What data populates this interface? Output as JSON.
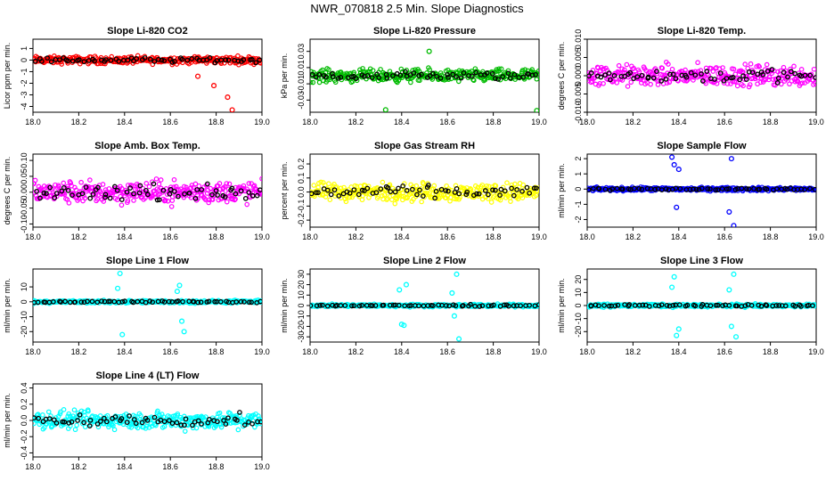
{
  "title": "NWR_070818  2.5 Min. Slope Diagnostics",
  "shared_x_ticks": [
    "18.0",
    "18.2",
    "18.4",
    "18.6",
    "18.8",
    "19.0"
  ],
  "chart_data": [
    {
      "type": "scatter",
      "title": "Slope Li-820 CO2",
      "ylabel": "Licor ppm per min.",
      "color": "#ff0000",
      "xlim": [
        18.0,
        19.0
      ],
      "ylim": [
        -4.5,
        1.8
      ],
      "yticks": [
        -4,
        -3,
        -2,
        -1,
        0,
        1
      ],
      "ytick_labels": [
        "-4",
        "-3",
        "-2",
        "-1",
        "0",
        "1"
      ],
      "noise": 0.5,
      "outliers": [
        [
          18.79,
          -2.2
        ],
        [
          18.85,
          -3.2
        ],
        [
          18.87,
          -4.3
        ],
        [
          18.72,
          -1.4
        ]
      ]
    },
    {
      "type": "scatter",
      "title": "Slope Li-820 Pressure",
      "ylabel": "kPa per min.",
      "color": "#00bb00",
      "xlim": [
        18.0,
        19.0
      ],
      "ylim": [
        -0.045,
        0.045
      ],
      "yticks": [
        -0.03,
        -0.01,
        0.01,
        0.03
      ],
      "ytick_labels": [
        "-0.03",
        "-0.01",
        "0.01",
        "0.03"
      ],
      "noise": 0.012,
      "outliers": [
        [
          18.33,
          -0.042
        ],
        [
          18.99,
          -0.043
        ],
        [
          18.52,
          0.03
        ]
      ]
    },
    {
      "type": "scatter",
      "title": "Slope Li-820 Temp.",
      "ylabel": "degrees C per min.",
      "color": "#ff00ff",
      "xlim": [
        18.0,
        19.0
      ],
      "ylim": [
        -0.01,
        0.01
      ],
      "yticks": [
        -0.01,
        -0.005,
        0.0,
        0.005,
        0.01
      ],
      "ytick_labels": [
        "-0.010",
        "-0.005",
        "0.000",
        "0.005",
        "0.010"
      ],
      "noise": 0.0045,
      "outliers": []
    },
    {
      "type": "scatter",
      "title": "Slope Amb. Box Temp.",
      "ylabel": "degrees C per min.",
      "color": "#ff00ff",
      "xlim": [
        18.0,
        19.0
      ],
      "ylim": [
        -0.11,
        0.12
      ],
      "yticks": [
        -0.1,
        -0.05,
        0.0,
        0.05,
        0.1
      ],
      "ytick_labels": [
        "-0.10",
        "-0.05",
        "0.00",
        "0.05",
        "0.10"
      ],
      "noise": 0.055,
      "outliers": []
    },
    {
      "type": "scatter",
      "title": "Slope Gas Stream RH",
      "ylabel": "percent per min.",
      "color": "#ffff00",
      "xlim": [
        18.0,
        19.0
      ],
      "ylim": [
        -0.25,
        0.27
      ],
      "yticks": [
        -0.2,
        -0.1,
        0.0,
        0.1,
        0.2
      ],
      "ytick_labels": [
        "-0.2",
        "-0.1",
        "0.0",
        "0.1",
        "0.2"
      ],
      "noise": 0.1,
      "outliers": []
    },
    {
      "type": "scatter",
      "title": "Slope Sample Flow",
      "ylabel": "ml/min per min.",
      "color": "#0000ff",
      "xlim": [
        18.0,
        19.0
      ],
      "ylim": [
        -2.5,
        2.3
      ],
      "yticks": [
        -2,
        -1,
        0,
        1,
        2
      ],
      "ytick_labels": [
        "-2",
        "-1",
        "0",
        "1",
        "2"
      ],
      "noise": 0.18,
      "outliers": [
        [
          18.37,
          2.1
        ],
        [
          18.38,
          1.6
        ],
        [
          18.39,
          -1.2
        ],
        [
          18.63,
          2.0
        ],
        [
          18.64,
          -2.4
        ],
        [
          18.62,
          -1.5
        ],
        [
          18.4,
          1.3
        ]
      ]
    },
    {
      "type": "scatter",
      "title": "Slope Line 1 Flow",
      "ylabel": "ml/min per min.",
      "color": "#00ffff",
      "xlim": [
        18.0,
        19.0
      ],
      "ylim": [
        -27,
        22
      ],
      "yticks": [
        -20,
        -10,
        0,
        10
      ],
      "ytick_labels": [
        "-20",
        "-10",
        "0",
        "10"
      ],
      "noise": 1.5,
      "outliers": [
        [
          18.38,
          19
        ],
        [
          18.39,
          -22
        ],
        [
          18.37,
          9
        ],
        [
          18.64,
          11
        ],
        [
          18.66,
          -20
        ],
        [
          18.63,
          7
        ],
        [
          18.65,
          -13
        ]
      ]
    },
    {
      "type": "scatter",
      "title": "Slope Line 2 Flow",
      "ylabel": "ml/min per min.",
      "color": "#00ffff",
      "xlim": [
        18.0,
        19.0
      ],
      "ylim": [
        -35,
        35
      ],
      "yticks": [
        -30,
        -20,
        -10,
        0,
        10,
        20,
        30
      ],
      "ytick_labels": [
        "-30",
        "-20",
        "-10",
        "0",
        "10",
        "20",
        "30"
      ],
      "noise": 2.0,
      "outliers": [
        [
          18.4,
          -18
        ],
        [
          18.41,
          -19
        ],
        [
          18.39,
          15
        ],
        [
          18.42,
          20
        ],
        [
          18.65,
          -32
        ],
        [
          18.64,
          30
        ],
        [
          18.63,
          -10
        ],
        [
          18.62,
          12
        ]
      ]
    },
    {
      "type": "scatter",
      "title": "Slope Line 3 Flow",
      "ylabel": "ml/min per min.",
      "color": "#00ffff",
      "xlim": [
        18.0,
        19.0
      ],
      "ylim": [
        -28,
        28
      ],
      "yticks": [
        -20,
        -10,
        0,
        10,
        20
      ],
      "ytick_labels": [
        "-20",
        "-10",
        "0",
        "10",
        "20"
      ],
      "noise": 1.8,
      "outliers": [
        [
          18.38,
          22
        ],
        [
          18.39,
          -23
        ],
        [
          18.4,
          -18
        ],
        [
          18.37,
          14
        ],
        [
          18.64,
          24
        ],
        [
          18.65,
          -24
        ],
        [
          18.63,
          -16
        ],
        [
          18.62,
          12
        ]
      ]
    },
    {
      "type": "scatter",
      "title": "Slope Line 4 (LT) Flow",
      "ylabel": "ml/min per min.",
      "color": "#00ffff",
      "xlim": [
        18.0,
        19.0
      ],
      "ylim": [
        -0.45,
        0.45
      ],
      "yticks": [
        -0.4,
        -0.2,
        0.0,
        0.2,
        0.4
      ],
      "ytick_labels": [
        "-0.4",
        "-0.2",
        "0.0",
        "0.2",
        "0.4"
      ],
      "noise": 0.17,
      "outliers": []
    }
  ]
}
